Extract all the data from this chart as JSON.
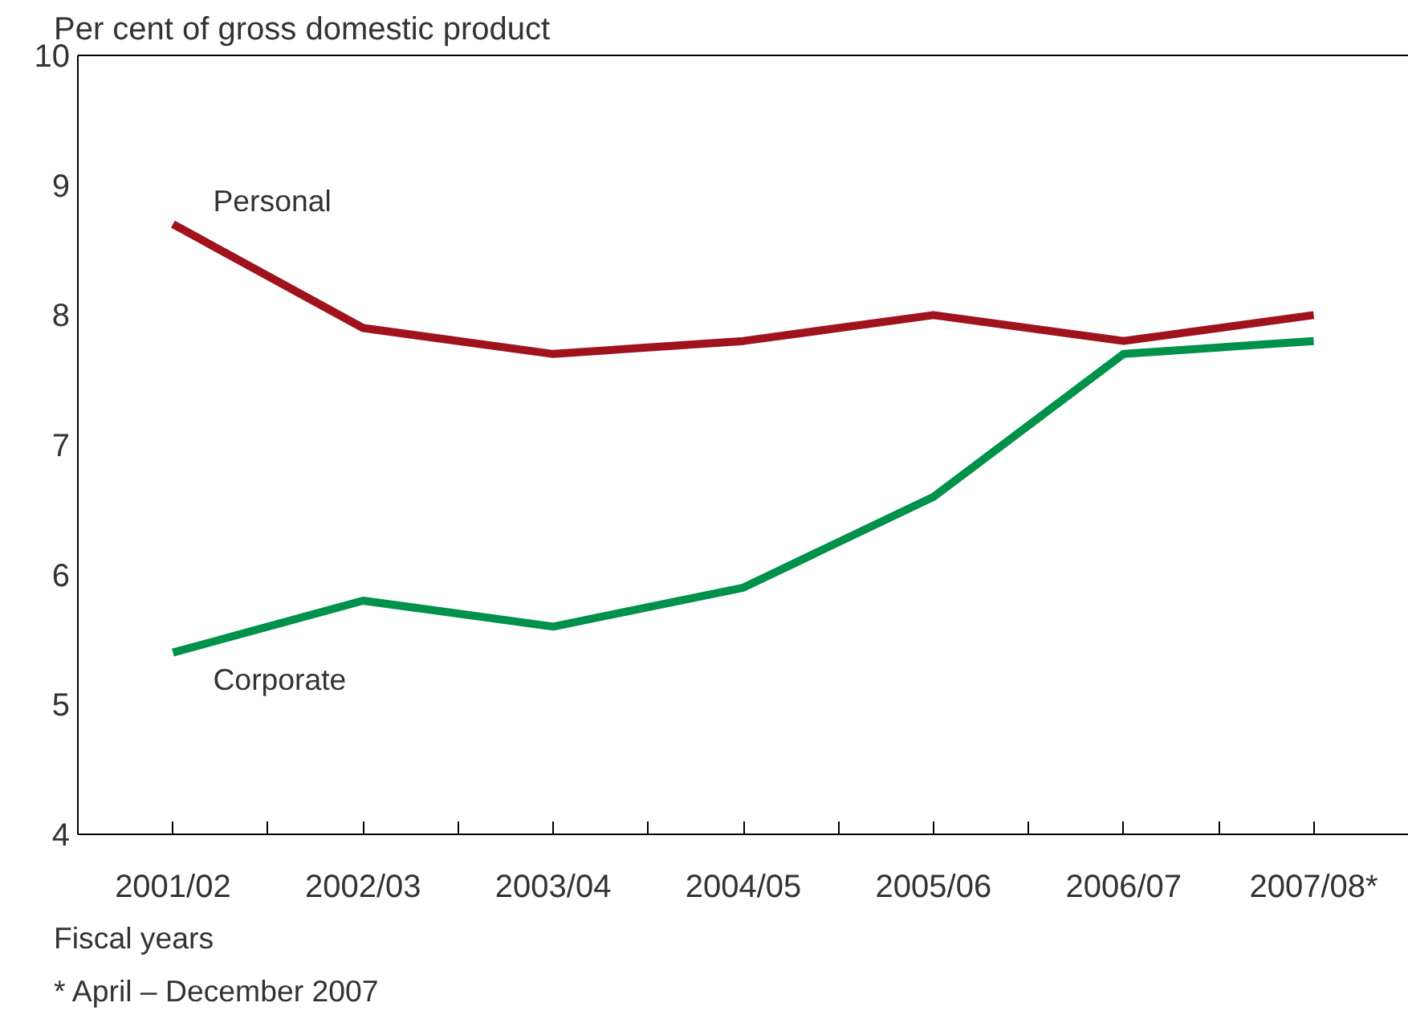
{
  "chart_data": {
    "type": "line",
    "ylabel": "Per cent of gross domestic product",
    "xlabel": "Fiscal years",
    "categories": [
      "2001/02",
      "2002/03",
      "2003/04",
      "2004/05",
      "2005/06",
      "2006/07",
      "2007/08*"
    ],
    "series": [
      {
        "name": "Personal",
        "color": "#a0121c",
        "values": [
          8.7,
          7.9,
          7.7,
          7.8,
          8.0,
          7.8,
          8.0
        ]
      },
      {
        "name": "Corporate",
        "color": "#00914a",
        "values": [
          5.4,
          5.8,
          5.6,
          5.9,
          6.6,
          7.7,
          7.8
        ]
      }
    ],
    "ylim": [
      4,
      10
    ],
    "yticks": [
      4,
      5,
      6,
      7,
      8,
      9,
      10
    ],
    "grid": false,
    "legend": false,
    "marker": "none",
    "line_style": "solid",
    "annotations": [
      "* April – December 2007"
    ]
  }
}
